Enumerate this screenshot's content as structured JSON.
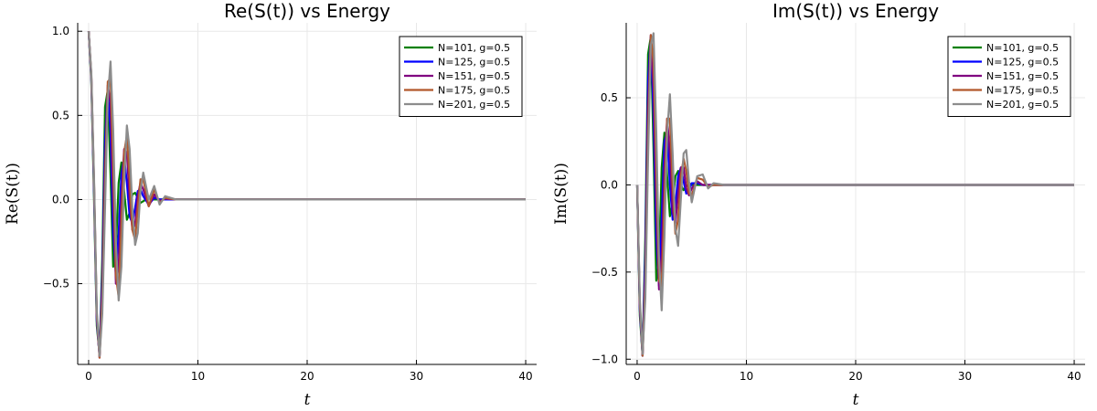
{
  "chart_data": [
    {
      "type": "line",
      "title": "Re(S(t)) vs Energy",
      "xlabel": "t",
      "ylabel": "Re(S(t))",
      "xlim": [
        -1,
        41
      ],
      "ylim": [
        -0.98,
        1.05
      ],
      "xticks": [
        0,
        10,
        20,
        30,
        40
      ],
      "xtick_labels": [
        "0",
        "10",
        "20",
        "30",
        "40"
      ],
      "yticks": [
        -0.5,
        0,
        0.5,
        1.0
      ],
      "ytick_labels": [
        "−0.5",
        "0.0",
        "0.5",
        "1.0"
      ],
      "grid": true,
      "legend_position": "top-right",
      "series": [
        {
          "name": "N=101, g=0.5",
          "color": "#008000",
          "x": [
            0,
            0.25,
            0.5,
            0.75,
            1,
            1.25,
            1.5,
            1.75,
            2,
            2.25,
            2.5,
            2.75,
            3,
            3.25,
            3.5,
            3.75,
            4,
            4.25,
            4.5,
            4.75,
            5,
            5.5,
            6,
            6.5,
            7,
            8,
            10,
            40
          ],
          "y": [
            1.0,
            0.7,
            0.0,
            -0.75,
            -0.92,
            -0.35,
            0.55,
            0.65,
            0.15,
            -0.4,
            -0.3,
            0.1,
            0.22,
            0.05,
            -0.12,
            -0.08,
            0.03,
            0.04,
            0.01,
            -0.02,
            -0.01,
            0.01,
            0,
            0,
            0,
            0,
            0,
            0
          ]
        },
        {
          "name": "N=125, g=0.5",
          "color": "#0000ff",
          "x": [
            0,
            0.25,
            0.5,
            0.75,
            1,
            1.25,
            1.5,
            1.75,
            2,
            2.25,
            2.5,
            2.75,
            3,
            3.25,
            3.5,
            3.75,
            4,
            4.25,
            4.5,
            4.75,
            5,
            5.5,
            6,
            6.5,
            7,
            8,
            10,
            40
          ],
          "y": [
            1.0,
            0.72,
            0.05,
            -0.72,
            -0.93,
            -0.45,
            0.35,
            0.66,
            0.4,
            -0.2,
            -0.45,
            -0.2,
            0.15,
            0.25,
            0.1,
            -0.1,
            -0.14,
            -0.05,
            0.05,
            0.06,
            0.02,
            -0.03,
            0.01,
            0,
            0,
            0,
            0,
            0
          ]
        },
        {
          "name": "N=151, g=0.5",
          "color": "#800080",
          "x": [
            0,
            0.25,
            0.5,
            0.75,
            1,
            1.25,
            1.5,
            1.75,
            2,
            2.25,
            2.5,
            2.75,
            3,
            3.25,
            3.5,
            3.75,
            4,
            4.25,
            4.5,
            4.75,
            5,
            5.5,
            6,
            6.5,
            7,
            8,
            10,
            40
          ],
          "y": [
            1.0,
            0.73,
            0.08,
            -0.7,
            -0.94,
            -0.52,
            0.2,
            0.68,
            0.58,
            0.02,
            -0.5,
            -0.4,
            0.0,
            0.3,
            0.28,
            0.0,
            -0.18,
            -0.15,
            0.02,
            0.1,
            0.06,
            -0.04,
            0.03,
            -0.01,
            0.005,
            0,
            0,
            0
          ]
        },
        {
          "name": "N=175, g=0.5",
          "color": "#b2582b",
          "x": [
            0,
            0.25,
            0.5,
            0.75,
            1,
            1.25,
            1.5,
            1.75,
            2,
            2.25,
            2.5,
            2.75,
            3,
            3.25,
            3.5,
            3.75,
            4,
            4.25,
            4.5,
            4.75,
            5,
            5.5,
            6,
            6.5,
            7,
            8,
            10,
            40
          ],
          "y": [
            1.0,
            0.74,
            0.1,
            -0.68,
            -0.94,
            -0.6,
            0.1,
            0.7,
            0.72,
            0.2,
            -0.45,
            -0.58,
            -0.15,
            0.28,
            0.38,
            0.12,
            -0.18,
            -0.24,
            -0.05,
            0.12,
            0.12,
            -0.04,
            0.06,
            -0.02,
            0.01,
            0,
            0,
            0
          ]
        },
        {
          "name": "N=201, g=0.5",
          "color": "#8c8c8c",
          "x": [
            0,
            0.25,
            0.5,
            0.75,
            1,
            1.25,
            1.5,
            1.75,
            2,
            2.25,
            2.5,
            2.75,
            3,
            3.25,
            3.5,
            3.75,
            4,
            4.25,
            4.5,
            4.75,
            5,
            5.5,
            6,
            6.5,
            7,
            8,
            10,
            40
          ],
          "y": [
            1.0,
            0.75,
            0.12,
            -0.66,
            -0.93,
            -0.68,
            -0.05,
            0.6,
            0.82,
            0.42,
            -0.25,
            -0.6,
            -0.4,
            0.1,
            0.44,
            0.3,
            -0.05,
            -0.27,
            -0.2,
            0.05,
            0.16,
            0.0,
            0.08,
            -0.03,
            0.02,
            0,
            0,
            0
          ]
        }
      ]
    },
    {
      "type": "line",
      "title": "Im(S(t)) vs Energy",
      "xlabel": "t",
      "ylabel": "Im(S(t))",
      "xlim": [
        -1,
        41
      ],
      "ylim": [
        -1.03,
        0.93
      ],
      "xticks": [
        0,
        10,
        20,
        30,
        40
      ],
      "xtick_labels": [
        "0",
        "10",
        "20",
        "30",
        "40"
      ],
      "yticks": [
        -1.0,
        -0.5,
        0,
        0.5
      ],
      "ytick_labels": [
        "−1.0",
        "−0.5",
        "0.0",
        "0.5"
      ],
      "grid": true,
      "legend_position": "top-right",
      "series": [
        {
          "name": "N=101, g=0.5",
          "color": "#008000",
          "x": [
            0,
            0.25,
            0.5,
            0.75,
            1,
            1.25,
            1.5,
            1.75,
            2,
            2.25,
            2.5,
            2.75,
            3,
            3.25,
            3.5,
            3.75,
            4,
            4.25,
            4.5,
            4.75,
            5,
            5.5,
            6,
            6.5,
            7,
            8,
            10,
            40
          ],
          "y": [
            0.0,
            -0.75,
            -0.98,
            -0.3,
            0.75,
            0.85,
            0.2,
            -0.55,
            -0.45,
            0.1,
            0.3,
            0.05,
            -0.18,
            -0.1,
            0.05,
            0.08,
            0.0,
            -0.03,
            -0.01,
            0.01,
            0.0,
            0.0,
            0,
            0,
            0,
            0,
            0,
            0
          ]
        },
        {
          "name": "N=125, g=0.5",
          "color": "#0000ff",
          "x": [
            0,
            0.25,
            0.5,
            0.75,
            1,
            1.25,
            1.5,
            1.75,
            2,
            2.25,
            2.5,
            2.75,
            3,
            3.25,
            3.5,
            3.75,
            4,
            4.25,
            4.5,
            4.75,
            5,
            5.5,
            6,
            6.5,
            7,
            8,
            10,
            40
          ],
          "y": [
            0.0,
            -0.72,
            -0.98,
            -0.4,
            0.6,
            0.85,
            0.4,
            -0.3,
            -0.58,
            -0.2,
            0.25,
            0.3,
            0.0,
            -0.2,
            -0.12,
            0.05,
            0.1,
            0.02,
            -0.05,
            -0.03,
            0.01,
            0.01,
            0,
            0,
            0,
            0,
            0,
            0
          ]
        },
        {
          "name": "N=151, g=0.5",
          "color": "#800080",
          "x": [
            0,
            0.25,
            0.5,
            0.75,
            1,
            1.25,
            1.5,
            1.75,
            2,
            2.25,
            2.5,
            2.75,
            3,
            3.25,
            3.5,
            3.75,
            4,
            4.25,
            4.5,
            4.75,
            5,
            5.5,
            6,
            6.5,
            7,
            8,
            10,
            40
          ],
          "y": [
            0.0,
            -0.7,
            -0.98,
            -0.5,
            0.45,
            0.86,
            0.55,
            -0.1,
            -0.6,
            -0.4,
            0.1,
            0.38,
            0.18,
            -0.15,
            -0.22,
            -0.05,
            0.1,
            0.1,
            -0.02,
            -0.06,
            -0.02,
            0.02,
            0.0,
            0,
            0,
            0,
            0,
            0
          ]
        },
        {
          "name": "N=175, g=0.5",
          "color": "#b2582b",
          "x": [
            0,
            0.25,
            0.5,
            0.75,
            1,
            1.25,
            1.5,
            1.75,
            2,
            2.25,
            2.5,
            2.75,
            3,
            3.25,
            3.5,
            3.75,
            4,
            4.25,
            4.5,
            4.75,
            5,
            5.5,
            6,
            6.5,
            7,
            8,
            10,
            40
          ],
          "y": [
            0.0,
            -0.68,
            -0.98,
            -0.58,
            0.3,
            0.86,
            0.7,
            0.1,
            -0.55,
            -0.58,
            -0.1,
            0.38,
            0.38,
            0.0,
            -0.28,
            -0.2,
            0.05,
            0.15,
            0.08,
            -0.05,
            -0.06,
            0.04,
            0.03,
            -0.01,
            0,
            0,
            0,
            0
          ]
        },
        {
          "name": "N=201, g=0.5",
          "color": "#8c8c8c",
          "x": [
            0,
            0.25,
            0.5,
            0.75,
            1,
            1.25,
            1.5,
            1.75,
            2,
            2.25,
            2.5,
            2.75,
            3,
            3.25,
            3.5,
            3.75,
            4,
            4.25,
            4.5,
            4.75,
            5,
            5.5,
            6,
            6.5,
            7,
            8,
            10,
            40
          ],
          "y": [
            0.0,
            -0.65,
            -0.97,
            -0.65,
            0.15,
            0.8,
            0.87,
            0.3,
            -0.42,
            -0.72,
            -0.3,
            0.3,
            0.52,
            0.18,
            -0.25,
            -0.35,
            -0.08,
            0.18,
            0.2,
            0.02,
            -0.1,
            0.05,
            0.06,
            -0.02,
            0.01,
            0,
            0,
            0
          ]
        }
      ]
    }
  ]
}
